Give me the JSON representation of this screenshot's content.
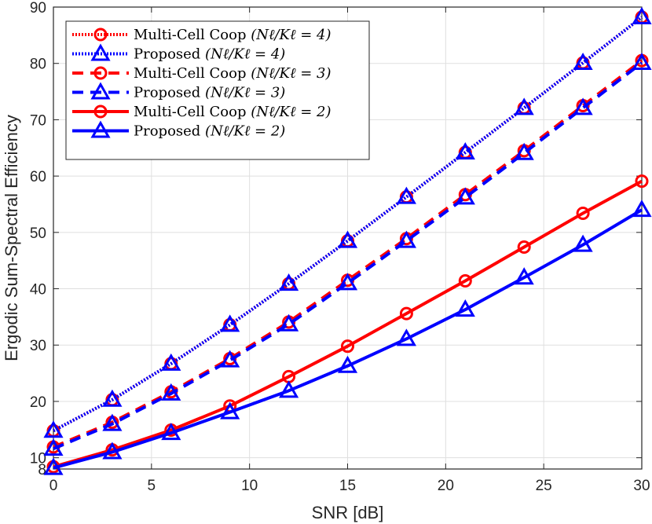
{
  "chart_data": {
    "type": "line",
    "title": "",
    "xlabel": "SNR [dB]",
    "ylabel": "Ergodic Sum-Spectral Efficiency",
    "xlim": [
      0,
      30
    ],
    "ylim": [
      8,
      90
    ],
    "xticks": [
      0,
      5,
      10,
      15,
      20,
      25,
      30
    ],
    "yticks": [
      8,
      10,
      20,
      30,
      40,
      50,
      60,
      70,
      80,
      90
    ],
    "grid": true,
    "legend_position": "top-left",
    "x": [
      0,
      3,
      6,
      9,
      12,
      15,
      18,
      21,
      24,
      27,
      30
    ],
    "series": [
      {
        "name": "Multi-Cell Coop (Nℓ/Kℓ = 4)",
        "color": "#ff0000",
        "style": "dotted",
        "marker": "circle",
        "values": [
          14.8,
          20.3,
          26.7,
          33.6,
          40.9,
          48.5,
          56.3,
          64.2,
          72.1,
          80.1,
          88.2
        ]
      },
      {
        "name": "Proposed (Nℓ/Kℓ = 4)",
        "color": "#0000ff",
        "style": "dotted",
        "marker": "triangle",
        "values": [
          14.8,
          20.3,
          26.7,
          33.6,
          40.9,
          48.5,
          56.3,
          64.2,
          72.1,
          80.1,
          88.2
        ]
      },
      {
        "name": "Multi-Cell Coop (Nℓ/Kℓ = 3)",
        "color": "#ff0000",
        "style": "dashed",
        "marker": "circle",
        "values": [
          11.9,
          16.3,
          21.7,
          27.6,
          34.1,
          41.5,
          48.9,
          56.7,
          64.5,
          72.5,
          80.5
        ]
      },
      {
        "name": "Proposed (Nℓ/Kℓ = 3)",
        "color": "#0000ff",
        "style": "dashed",
        "marker": "triangle",
        "values": [
          11.6,
          16.0,
          21.4,
          27.3,
          33.7,
          41.0,
          48.5,
          56.2,
          64.1,
          72.1,
          80.1
        ]
      },
      {
        "name": "Multi-Cell Coop (Nℓ/Kℓ = 2)",
        "color": "#ff0000",
        "style": "solid",
        "marker": "circle",
        "values": [
          8.4,
          11.4,
          14.9,
          19.2,
          24.4,
          29.8,
          35.6,
          41.4,
          47.4,
          53.4,
          59.1
        ]
      },
      {
        "name": "Proposed (Nℓ/Kℓ = 2)",
        "color": "#0000ff",
        "style": "solid",
        "marker": "triangle",
        "values": [
          8.2,
          11.0,
          14.4,
          18.1,
          21.9,
          26.3,
          31.1,
          36.3,
          42.0,
          47.8,
          54.0
        ]
      }
    ],
    "legend": [
      {
        "label": "Multi-Cell Coop",
        "ratio": "(Nℓ/Kℓ = 4)"
      },
      {
        "label": "Proposed",
        "ratio": "(Nℓ/Kℓ = 4)"
      },
      {
        "label": "Multi-Cell Coop",
        "ratio": "(Nℓ/Kℓ = 3)"
      },
      {
        "label": "Proposed",
        "ratio": "(Nℓ/Kℓ = 3)"
      },
      {
        "label": "Multi-Cell Coop",
        "ratio": "(Nℓ/Kℓ = 2)"
      },
      {
        "label": "Proposed",
        "ratio": "(Nℓ/Kℓ = 2)"
      }
    ]
  }
}
